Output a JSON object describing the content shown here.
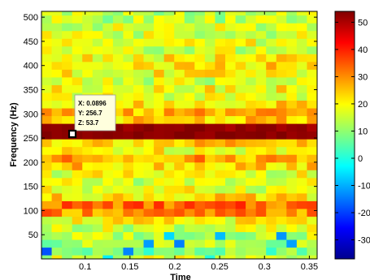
{
  "chart_data": {
    "type": "heatmap",
    "title": "",
    "xlabel": "Time",
    "ylabel": "Frequency (Hz)",
    "xlim": [
      0.0513,
      0.3587
    ],
    "ylim": [
      0,
      512
    ],
    "x_ticks": [
      "0.1",
      "0.15",
      "0.2",
      "0.25",
      "0.3",
      "0.35"
    ],
    "y_ticks": [
      "50",
      "100",
      "150",
      "200",
      "250",
      "300",
      "350",
      "400",
      "450",
      "500"
    ],
    "colorbar": {
      "colormap": "jet",
      "range": [
        -37,
        54
      ],
      "ticks": [
        "50",
        "40",
        "30",
        "20",
        "10",
        "0",
        "-10",
        "-20",
        "-30"
      ]
    },
    "n_time_bins": 27,
    "n_freq_bins": 33,
    "freq_bin_hz": 16,
    "profile": [
      {
        "freq": 16,
        "level": 8
      },
      {
        "freq": 32,
        "level": 12
      },
      {
        "freq": 48,
        "level": 14
      },
      {
        "freq": 64,
        "level": 16
      },
      {
        "freq": 80,
        "level": 20
      },
      {
        "freq": 96,
        "level": 30
      },
      {
        "freq": 112,
        "level": 33
      },
      {
        "freq": 128,
        "level": 22
      },
      {
        "freq": 144,
        "level": 18
      },
      {
        "freq": 160,
        "level": 16
      },
      {
        "freq": 176,
        "level": 18
      },
      {
        "freq": 192,
        "level": 24
      },
      {
        "freq": 208,
        "level": 28
      },
      {
        "freq": 224,
        "level": 20
      },
      {
        "freq": 240,
        "level": 24
      },
      {
        "freq": 256,
        "level": 53
      },
      {
        "freq": 272,
        "level": 52
      },
      {
        "freq": 288,
        "level": 24
      },
      {
        "freq": 304,
        "level": 26
      },
      {
        "freq": 320,
        "level": 22
      },
      {
        "freq": 336,
        "level": 18
      },
      {
        "freq": 352,
        "level": 20
      },
      {
        "freq": 368,
        "level": 16
      },
      {
        "freq": 384,
        "level": 20
      },
      {
        "freq": 400,
        "level": 22
      },
      {
        "freq": 416,
        "level": 20
      },
      {
        "freq": 432,
        "level": 16
      },
      {
        "freq": 448,
        "level": 18
      },
      {
        "freq": 464,
        "level": 16
      },
      {
        "freq": 480,
        "level": 16
      },
      {
        "freq": 496,
        "level": 14
      },
      {
        "freq": 512,
        "level": 14
      }
    ],
    "datatip": {
      "x_label": "X: 0.0896",
      "y_label": "Y: 256.7",
      "z_label": "Z: 53.7",
      "x": 0.0896,
      "y": 256.7,
      "z": 53.7
    }
  }
}
